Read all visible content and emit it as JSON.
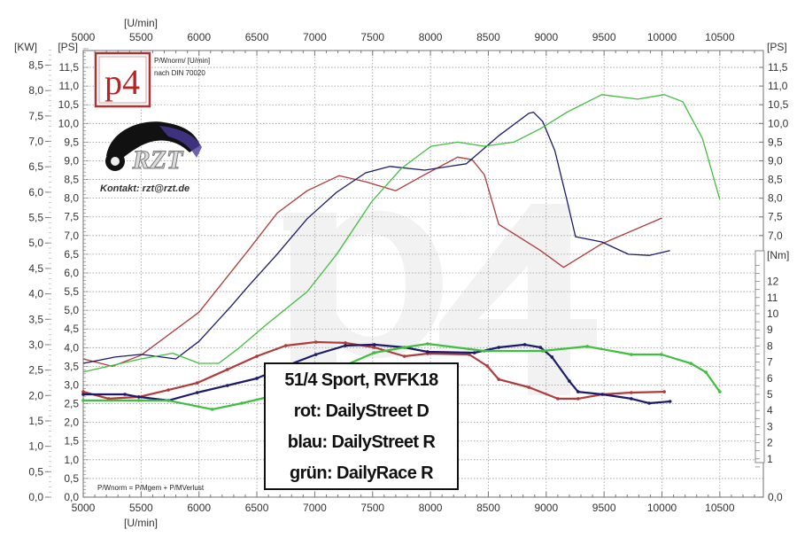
{
  "chart_data": {
    "type": "line",
    "xlabel": "[U/min]",
    "ylabel_left_kw": "[KW]",
    "ylabel_left_ps": "[PS]",
    "ylabel_right_ps": "[PS]",
    "ylabel_right_nm": "[Nm]",
    "xlim": [
      5000,
      10880
    ],
    "ylim_ps": [
      0,
      12
    ],
    "ylim_nm": [
      0,
      13
    ],
    "grid": true,
    "x_tick_labels": [
      "5000",
      "5500",
      "6000",
      "6500",
      "7000",
      "7500",
      "8000",
      "8500",
      "9000",
      "9500",
      "10000",
      "10500"
    ],
    "ps_tick_labels": [
      "0,0",
      "0,5",
      "1,0",
      "1,5",
      "2,0",
      "2,5",
      "3,0",
      "3,5",
      "4,0",
      "4,5",
      "5,0",
      "5,5",
      "6,0",
      "6,5",
      "7,0",
      "7,5",
      "8,0",
      "8,5",
      "9,0",
      "9,5",
      "10,0",
      "10,5",
      "11,0",
      "11,5"
    ],
    "kw_tick_labels": [
      "0,0",
      "0,5",
      "1,0",
      "1,5",
      "2,0",
      "2,5",
      "3,0",
      "3,5",
      "4,0",
      "4,5",
      "5,0",
      "5,5",
      "6,0",
      "6,5",
      "7,0",
      "7,5",
      "8,0",
      "8,5"
    ],
    "right_ps_tick_labels": [
      "0,0",
      "7,0",
      "7,5",
      "8,0",
      "8,5",
      "9,0",
      "9,5",
      "10,0",
      "10,5",
      "11,0",
      "11,5"
    ],
    "nm_tick_labels": [
      "1",
      "2",
      "3",
      "4",
      "5",
      "6",
      "7",
      "8",
      "9",
      "10",
      "11",
      "12"
    ],
    "series": [
      {
        "name": "DailyStreet D",
        "color": "#b23a3a",
        "power_ps": [
          [
            5000,
            3.7
          ],
          [
            5250,
            3.5
          ],
          [
            5500,
            3.8
          ],
          [
            6000,
            4.95
          ],
          [
            6425,
            6.6
          ],
          [
            6675,
            7.6
          ],
          [
            6935,
            8.2
          ],
          [
            7210,
            8.6
          ],
          [
            7440,
            8.44
          ],
          [
            7700,
            8.2
          ],
          [
            7950,
            8.63
          ],
          [
            8235,
            9.1
          ],
          [
            8360,
            9.03
          ],
          [
            8465,
            8.63
          ],
          [
            8590,
            7.3
          ],
          [
            8720,
            7.05
          ],
          [
            8950,
            6.6
          ],
          [
            9150,
            6.15
          ],
          [
            9480,
            6.78
          ],
          [
            10000,
            7.47
          ]
        ],
        "torque_nm": [
          [
            5000,
            5.16
          ],
          [
            5220,
            4.73
          ],
          [
            5480,
            4.84
          ],
          [
            5735,
            5.27
          ],
          [
            5985,
            5.71
          ],
          [
            6245,
            6.54
          ],
          [
            6500,
            7.36
          ],
          [
            6750,
            8.02
          ],
          [
            7010,
            8.24
          ],
          [
            7265,
            8.19
          ],
          [
            7515,
            7.91
          ],
          [
            7775,
            7.36
          ],
          [
            7975,
            7.53
          ],
          [
            8335,
            7.47
          ],
          [
            8490,
            6.76
          ],
          [
            8590,
            5.93
          ],
          [
            8850,
            5.44
          ],
          [
            9100,
            4.73
          ],
          [
            9275,
            4.73
          ],
          [
            9485,
            5.0
          ],
          [
            9735,
            5.11
          ],
          [
            10020,
            5.16
          ]
        ]
      },
      {
        "name": "DailyStreet R",
        "color": "#1b1b6b",
        "power_ps": [
          [
            5000,
            3.58
          ],
          [
            5275,
            3.75
          ],
          [
            5500,
            3.82
          ],
          [
            5800,
            3.7
          ],
          [
            6000,
            4.17
          ],
          [
            6275,
            5.1
          ],
          [
            6425,
            5.64
          ],
          [
            6675,
            6.5
          ],
          [
            6935,
            7.45
          ],
          [
            7190,
            8.16
          ],
          [
            7440,
            8.68
          ],
          [
            7650,
            8.85
          ],
          [
            7950,
            8.75
          ],
          [
            8310,
            8.92
          ],
          [
            8590,
            9.67
          ],
          [
            8850,
            10.27
          ],
          [
            8890,
            10.3
          ],
          [
            8970,
            10.05
          ],
          [
            9075,
            9.27
          ],
          [
            9175,
            8.0
          ],
          [
            9253,
            6.97
          ],
          [
            9480,
            6.83
          ],
          [
            9710,
            6.5
          ],
          [
            9890,
            6.47
          ],
          [
            10070,
            6.6
          ]
        ],
        "torque_nm": [
          [
            5000,
            5.0
          ],
          [
            5360,
            5.0
          ],
          [
            5480,
            4.84
          ],
          [
            5735,
            4.62
          ],
          [
            5985,
            5.11
          ],
          [
            6245,
            5.55
          ],
          [
            6500,
            5.99
          ],
          [
            6750,
            6.76
          ],
          [
            7010,
            7.47
          ],
          [
            7265,
            8.02
          ],
          [
            7515,
            8.08
          ],
          [
            7775,
            7.91
          ],
          [
            7975,
            7.64
          ],
          [
            8380,
            7.58
          ],
          [
            8590,
            7.91
          ],
          [
            8815,
            8.08
          ],
          [
            8950,
            7.91
          ],
          [
            9050,
            7.31
          ],
          [
            9200,
            5.82
          ],
          [
            9275,
            5.16
          ],
          [
            9485,
            5.0
          ],
          [
            9735,
            4.73
          ],
          [
            9890,
            4.45
          ],
          [
            10070,
            4.56
          ]
        ]
      },
      {
        "name": "DailyRace R",
        "color": "#3fbf3f",
        "power_ps": [
          [
            5000,
            3.35
          ],
          [
            5500,
            3.7
          ],
          [
            5775,
            3.85
          ],
          [
            6000,
            3.58
          ],
          [
            6170,
            3.58
          ],
          [
            6350,
            4.0
          ],
          [
            6575,
            4.6
          ],
          [
            6935,
            5.5
          ],
          [
            7190,
            6.5
          ],
          [
            7495,
            7.92
          ],
          [
            7750,
            8.8
          ],
          [
            8005,
            9.39
          ],
          [
            8235,
            9.5
          ],
          [
            8465,
            9.39
          ],
          [
            8720,
            9.5
          ],
          [
            8950,
            9.86
          ],
          [
            9180,
            10.3
          ],
          [
            9480,
            10.77
          ],
          [
            9790,
            10.65
          ],
          [
            10020,
            10.77
          ],
          [
            10180,
            10.58
          ],
          [
            10350,
            9.6
          ],
          [
            10500,
            7.97
          ]
        ],
        "torque_nm": [
          [
            5000,
            4.62
          ],
          [
            5480,
            4.62
          ],
          [
            5735,
            4.62
          ],
          [
            6115,
            4.07
          ],
          [
            6370,
            4.45
          ],
          [
            6630,
            4.89
          ],
          [
            7010,
            6.1
          ],
          [
            7265,
            6.81
          ],
          [
            7515,
            7.58
          ],
          [
            7775,
            7.91
          ],
          [
            7975,
            8.13
          ],
          [
            8465,
            7.69
          ],
          [
            8970,
            7.69
          ],
          [
            9355,
            7.97
          ],
          [
            9735,
            7.47
          ],
          [
            9995,
            7.47
          ],
          [
            10250,
            6.92
          ],
          [
            10380,
            6.37
          ],
          [
            10500,
            5.16
          ]
        ]
      }
    ]
  },
  "header": {
    "norm_line1": "P/Wnorm/ [U/min]",
    "norm_line2": "nach DIN 70020"
  },
  "logos": {
    "p4": "p4",
    "rzt": "RZT",
    "watermark": "p4"
  },
  "contact": "Kontakt: rzt@rzt.de",
  "formula": "P/Wnorm = P/Mgem + P/MVerlust",
  "legend": {
    "title": "51/4 Sport, RVFK18",
    "lines": [
      "rot: DailyStreet D",
      "blau: DailyStreet R",
      "grün: DailyRace R"
    ]
  }
}
